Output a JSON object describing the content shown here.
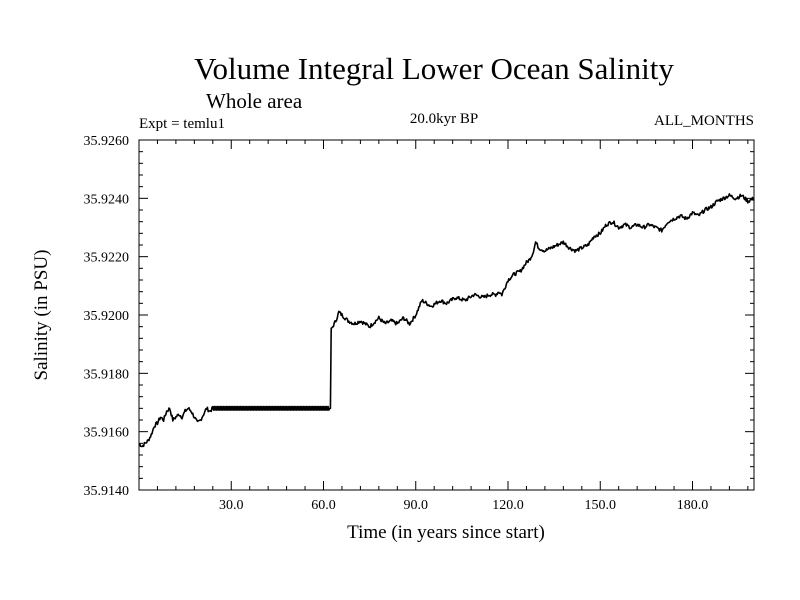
{
  "chart_data": {
    "type": "line",
    "title": "Volume Integral Lower Ocean Salinity",
    "subtitle": "Whole area",
    "annotations": {
      "experiment": "Expt = temlu1",
      "period": "20.0kyr BP",
      "months": "ALL_MONTHS"
    },
    "xlabel": "Time (in years since start)",
    "ylabel": "Salinity (in PSU)",
    "xlim": [
      0,
      200
    ],
    "ylim": [
      35.914,
      35.926
    ],
    "x_ticks": [
      {
        "value": 30,
        "label": "30.0"
      },
      {
        "value": 60,
        "label": "60.0"
      },
      {
        "value": 90,
        "label": "90.0"
      },
      {
        "value": 120,
        "label": "120.0"
      },
      {
        "value": 150,
        "label": "150.0"
      },
      {
        "value": 180,
        "label": "180.0"
      }
    ],
    "y_ticks": [
      {
        "value": 35.914,
        "label": "35.9140"
      },
      {
        "value": 35.916,
        "label": "35.9160"
      },
      {
        "value": 35.918,
        "label": "35.9180"
      },
      {
        "value": 35.92,
        "label": "35.9200"
      },
      {
        "value": 35.922,
        "label": "35.9220"
      },
      {
        "value": 35.924,
        "label": "35.9240"
      },
      {
        "value": 35.926,
        "label": "35.9260"
      }
    ],
    "grid": false,
    "series": [
      {
        "name": "Salinity",
        "x": [
          0,
          1,
          2,
          3,
          4,
          5,
          6,
          7,
          8,
          9,
          10,
          11,
          12,
          13,
          14,
          15,
          16,
          17,
          18,
          19,
          20,
          21,
          22,
          23,
          24,
          30,
          40,
          50,
          60,
          62,
          62.5,
          63,
          64,
          65,
          66,
          68,
          70,
          72,
          75,
          78,
          80,
          82,
          84,
          86,
          88,
          90,
          92,
          95,
          98,
          100,
          103,
          106,
          109,
          112,
          114,
          116,
          117,
          118,
          120,
          122,
          124,
          126,
          127,
          128,
          129,
          130,
          132,
          134,
          136,
          138,
          140,
          142,
          144,
          146,
          148,
          150,
          152,
          154,
          156,
          158,
          160,
          162,
          164,
          166,
          168,
          170,
          172,
          174,
          176,
          178,
          180,
          182,
          184,
          186,
          188,
          190,
          192,
          194,
          196,
          198,
          200
        ],
        "values": [
          35.9156,
          35.9155,
          35.9156,
          35.9157,
          35.9159,
          35.9162,
          35.9163,
          35.9165,
          35.9164,
          35.9167,
          35.9168,
          35.9164,
          35.9165,
          35.9166,
          35.9165,
          35.9167,
          35.9168,
          35.9167,
          35.9165,
          35.9163,
          35.9164,
          35.9166,
          35.9168,
          35.9167,
          35.9168,
          35.9168,
          35.9168,
          35.9168,
          35.9168,
          35.9168,
          35.9195,
          35.9196,
          35.9198,
          35.9201,
          35.92,
          35.9198,
          35.9197,
          35.9198,
          35.9196,
          35.9199,
          35.9197,
          35.9198,
          35.9197,
          35.9199,
          35.9197,
          35.92,
          35.9205,
          35.9203,
          35.9205,
          35.9204,
          35.9206,
          35.9205,
          35.9207,
          35.9206,
          35.9207,
          35.9207,
          35.9208,
          35.9207,
          35.9212,
          35.9214,
          35.9215,
          35.9218,
          35.9219,
          35.9221,
          35.9225,
          35.9223,
          35.9222,
          35.9223,
          35.9224,
          35.9225,
          35.9223,
          35.9222,
          35.9223,
          35.9224,
          35.9227,
          35.9228,
          35.9231,
          35.9232,
          35.923,
          35.9231,
          35.923,
          35.9231,
          35.923,
          35.9231,
          35.923,
          35.9229,
          35.9232,
          35.9233,
          35.9234,
          35.9233,
          35.9235,
          35.9234,
          35.9236,
          35.9237,
          35.9239,
          35.924,
          35.9241,
          35.924,
          35.9241,
          35.9239,
          35.924
        ]
      }
    ]
  }
}
